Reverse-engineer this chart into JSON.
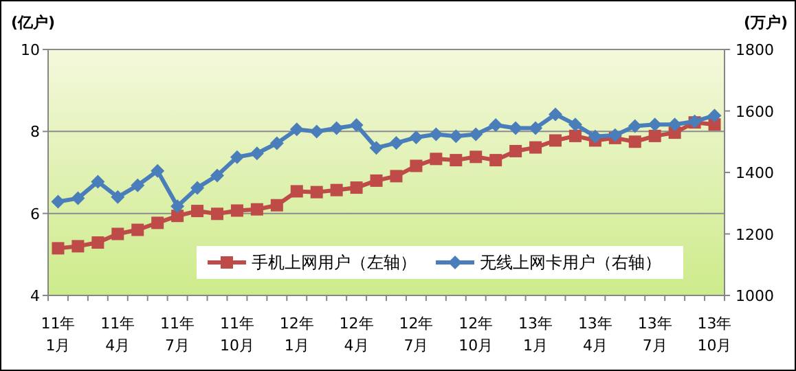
{
  "chart_data": {
    "type": "line",
    "ylabel": "(亿户)",
    "y2label": "(万户)",
    "categories": [
      "11年\n1月",
      null,
      null,
      "11年\n4月",
      null,
      null,
      "11年\n7月",
      null,
      null,
      "11年\n10月",
      null,
      null,
      "12年\n1月",
      null,
      null,
      "12年\n4月",
      null,
      null,
      "12年\n7月",
      null,
      null,
      "12年\n10月",
      null,
      null,
      "13年\n1月",
      null,
      null,
      "13年\n4月",
      null,
      null,
      "13年\n7月",
      null,
      null,
      "13年\n10月"
    ],
    "series": [
      {
        "name": "手机上网用户（左轴）",
        "color": "#be4b48",
        "marker": "square",
        "values": [
          5.15,
          5.2,
          5.29,
          5.5,
          5.6,
          5.77,
          5.94,
          6.06,
          5.99,
          6.07,
          6.1,
          6.2,
          6.54,
          6.52,
          6.57,
          6.63,
          6.8,
          6.91,
          7.16,
          7.33,
          7.3,
          7.38,
          7.3,
          7.52,
          7.61,
          7.78,
          7.89,
          7.78,
          7.84,
          7.75,
          7.89,
          7.97,
          8.22,
          8.17
        ]
      },
      {
        "name": "无线上网卡用户（右轴）",
        "color": "#4a7ebb",
        "marker": "diamond",
        "axis": "y2",
        "values": [
          1305,
          1316,
          1370,
          1320,
          1358,
          1405,
          1290,
          1350,
          1390,
          1450,
          1462,
          1495,
          1540,
          1533,
          1544,
          1554,
          1480,
          1496,
          1514,
          1524,
          1518,
          1524,
          1554,
          1544,
          1544,
          1589,
          1556,
          1517,
          1521,
          1551,
          1556,
          1556,
          1566,
          1585
        ]
      }
    ],
    "ylim": [
      4,
      10
    ],
    "yticks": [
      4,
      6,
      8,
      10
    ],
    "y2lim": [
      1000,
      1800
    ],
    "y2ticks": [
      1000,
      1200,
      1400,
      1600,
      1800
    ],
    "grid": "y",
    "legend": "bottom right"
  }
}
